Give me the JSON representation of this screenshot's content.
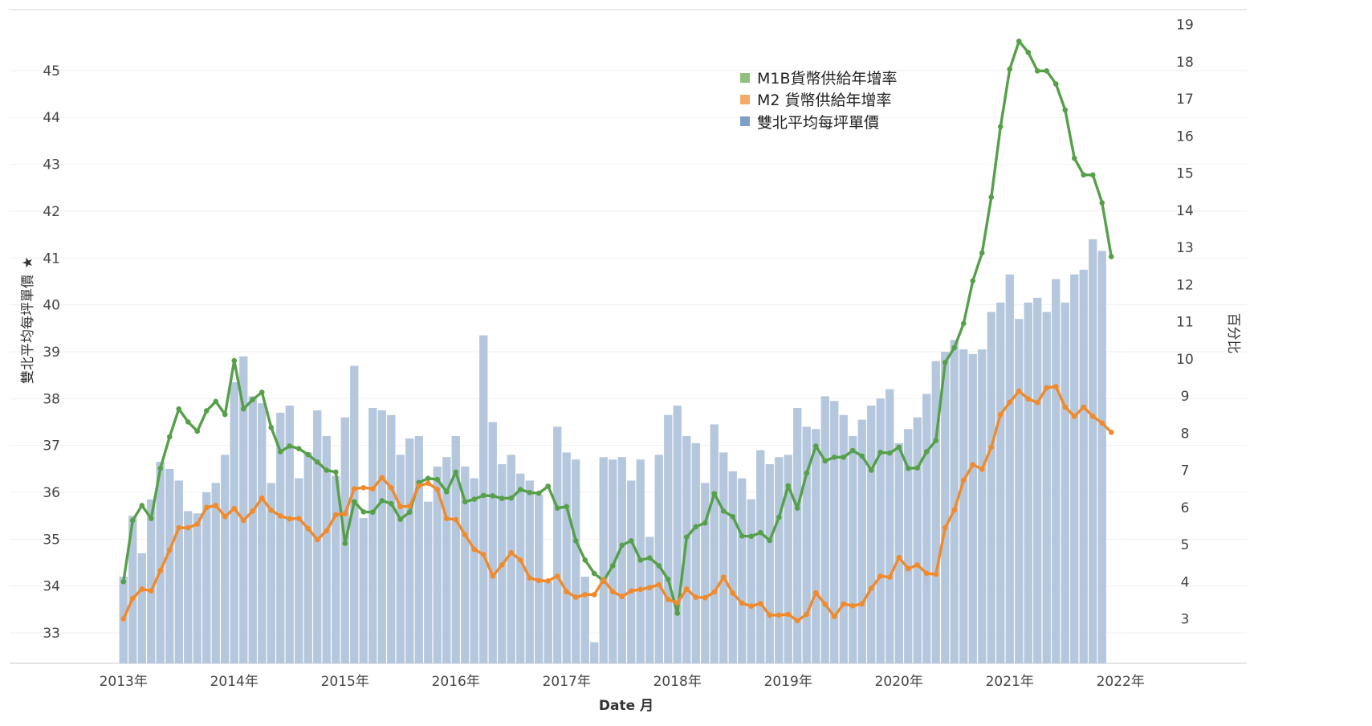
{
  "chart_data": {
    "type": "bar+line",
    "left_axis_label": "雙北平均每坪單價",
    "right_axis_label": "百分比",
    "x_axis_label": "Date 月",
    "left_ylim": [
      32.35,
      46.3
    ],
    "right_ylim": [
      1.8,
      19.4
    ],
    "left_ticks": [
      33,
      34,
      35,
      36,
      37,
      38,
      39,
      40,
      41,
      42,
      43,
      44,
      45
    ],
    "right_ticks": [
      3,
      4,
      5,
      6,
      7,
      8,
      9,
      10,
      11,
      12,
      13,
      14,
      15,
      16,
      17,
      18,
      19
    ],
    "x_ticks": [
      "2013年",
      "2014年",
      "2015年",
      "2016年",
      "2017年",
      "2018年",
      "2019年",
      "2020年",
      "2021年",
      "2022年"
    ],
    "months_start": "2013-01",
    "legend": [
      {
        "name": "M1B貨幣供給年增率",
        "color": "#8ec07e"
      },
      {
        "name": "M2 貨幣供給年增率",
        "color": "#f6aa6a"
      },
      {
        "name": "雙北平均每坪單價",
        "color": "#7d9fc3"
      }
    ],
    "series": [
      {
        "name": "雙北平均每坪單價",
        "kind": "bar",
        "axis": "left",
        "color": "#b5c7dd",
        "values": [
          34.2,
          35.5,
          34.7,
          35.85,
          36.65,
          36.5,
          36.25,
          35.6,
          35.55,
          36.0,
          36.2,
          36.8,
          38.35,
          38.9,
          38.05,
          37.9,
          36.2,
          37.7,
          37.85,
          36.3,
          36.85,
          37.75,
          37.2,
          36.35,
          37.6,
          38.7,
          35.45,
          37.8,
          37.75,
          37.65,
          36.8,
          37.15,
          37.2,
          35.8,
          36.55,
          36.75,
          37.2,
          36.55,
          36.3,
          39.35,
          37.5,
          36.6,
          36.8,
          36.4,
          36.25,
          35.95,
          34.1,
          37.4,
          36.85,
          36.7,
          34.2,
          32.8,
          36.75,
          36.7,
          36.75,
          36.25,
          36.7,
          35.05,
          36.8,
          37.65,
          37.85,
          37.2,
          37.05,
          36.2,
          37.45,
          36.85,
          36.45,
          36.3,
          35.85,
          36.9,
          36.6,
          36.75,
          36.8,
          37.8,
          37.4,
          37.35,
          38.05,
          37.95,
          37.65,
          37.2,
          37.55,
          37.85,
          38.0,
          38.2,
          37.05,
          37.35,
          37.6,
          38.1,
          38.8,
          39.0,
          39.25,
          39.05,
          38.95,
          39.05,
          39.85,
          40.05,
          40.65,
          39.7,
          40.05,
          40.15,
          39.85,
          40.55,
          40.05,
          40.65,
          40.75,
          41.4,
          41.15
        ]
      },
      {
        "name": "M1B貨幣供給年增率",
        "kind": "line",
        "axis": "right",
        "color": "#56a04a",
        "values": [
          4.0,
          5.65,
          6.05,
          5.7,
          7.05,
          7.9,
          8.65,
          8.3,
          8.05,
          8.6,
          8.85,
          8.5,
          9.95,
          8.65,
          8.9,
          9.1,
          8.15,
          7.5,
          7.65,
          7.58,
          7.42,
          7.22,
          7.0,
          6.95,
          5.03,
          6.15,
          5.88,
          5.87,
          6.18,
          6.1,
          5.68,
          5.87,
          6.67,
          6.78,
          6.75,
          6.42,
          6.95,
          6.15,
          6.22,
          6.32,
          6.31,
          6.24,
          6.25,
          6.48,
          6.4,
          6.38,
          6.57,
          5.98,
          6.02,
          5.1,
          4.58,
          4.22,
          4.02,
          4.43,
          4.98,
          5.1,
          4.58,
          4.64,
          4.43,
          4.06,
          3.15,
          5.2,
          5.48,
          5.58,
          6.37,
          5.9,
          5.75,
          5.23,
          5.22,
          5.32,
          5.11,
          5.73,
          6.58,
          5.98,
          6.92,
          7.65,
          7.25,
          7.35,
          7.35,
          7.53,
          7.38,
          7.0,
          7.48,
          7.46,
          7.62,
          7.05,
          7.06,
          7.5,
          7.8,
          9.9,
          10.3,
          10.95,
          12.1,
          12.85,
          14.35,
          16.25,
          17.8,
          18.55,
          18.25,
          17.75,
          17.75,
          17.4,
          16.7,
          15.4,
          14.95,
          14.95,
          14.2,
          12.75
        ]
      },
      {
        "name": "M2 貨幣供給年增率",
        "kind": "line",
        "axis": "right",
        "color": "#f08a2a",
        "values": [
          3.0,
          3.55,
          3.8,
          3.75,
          4.3,
          4.85,
          5.45,
          5.45,
          5.55,
          6.0,
          6.05,
          5.75,
          5.97,
          5.65,
          5.9,
          6.25,
          5.92,
          5.77,
          5.69,
          5.7,
          5.43,
          5.13,
          5.37,
          5.8,
          5.83,
          6.5,
          6.53,
          6.5,
          6.8,
          6.53,
          6.02,
          6.03,
          6.58,
          6.65,
          6.48,
          5.7,
          5.67,
          5.26,
          4.87,
          4.73,
          4.15,
          4.45,
          4.78,
          4.58,
          4.1,
          4.03,
          4.02,
          4.15,
          3.73,
          3.58,
          3.65,
          3.65,
          4.05,
          3.73,
          3.6,
          3.75,
          3.79,
          3.84,
          3.92,
          3.52,
          3.43,
          3.8,
          3.58,
          3.57,
          3.72,
          4.12,
          3.69,
          3.42,
          3.34,
          3.41,
          3.1,
          3.1,
          3.12,
          2.95,
          3.12,
          3.7,
          3.39,
          3.06,
          3.4,
          3.35,
          3.4,
          3.82,
          4.15,
          4.12,
          4.65,
          4.35,
          4.45,
          4.22,
          4.2,
          5.45,
          5.93,
          6.73,
          7.15,
          7.03,
          7.62,
          8.5,
          8.83,
          9.13,
          8.92,
          8.82,
          9.22,
          9.25,
          8.7,
          8.45,
          8.7,
          8.45,
          8.27,
          8.02
        ]
      }
    ]
  }
}
